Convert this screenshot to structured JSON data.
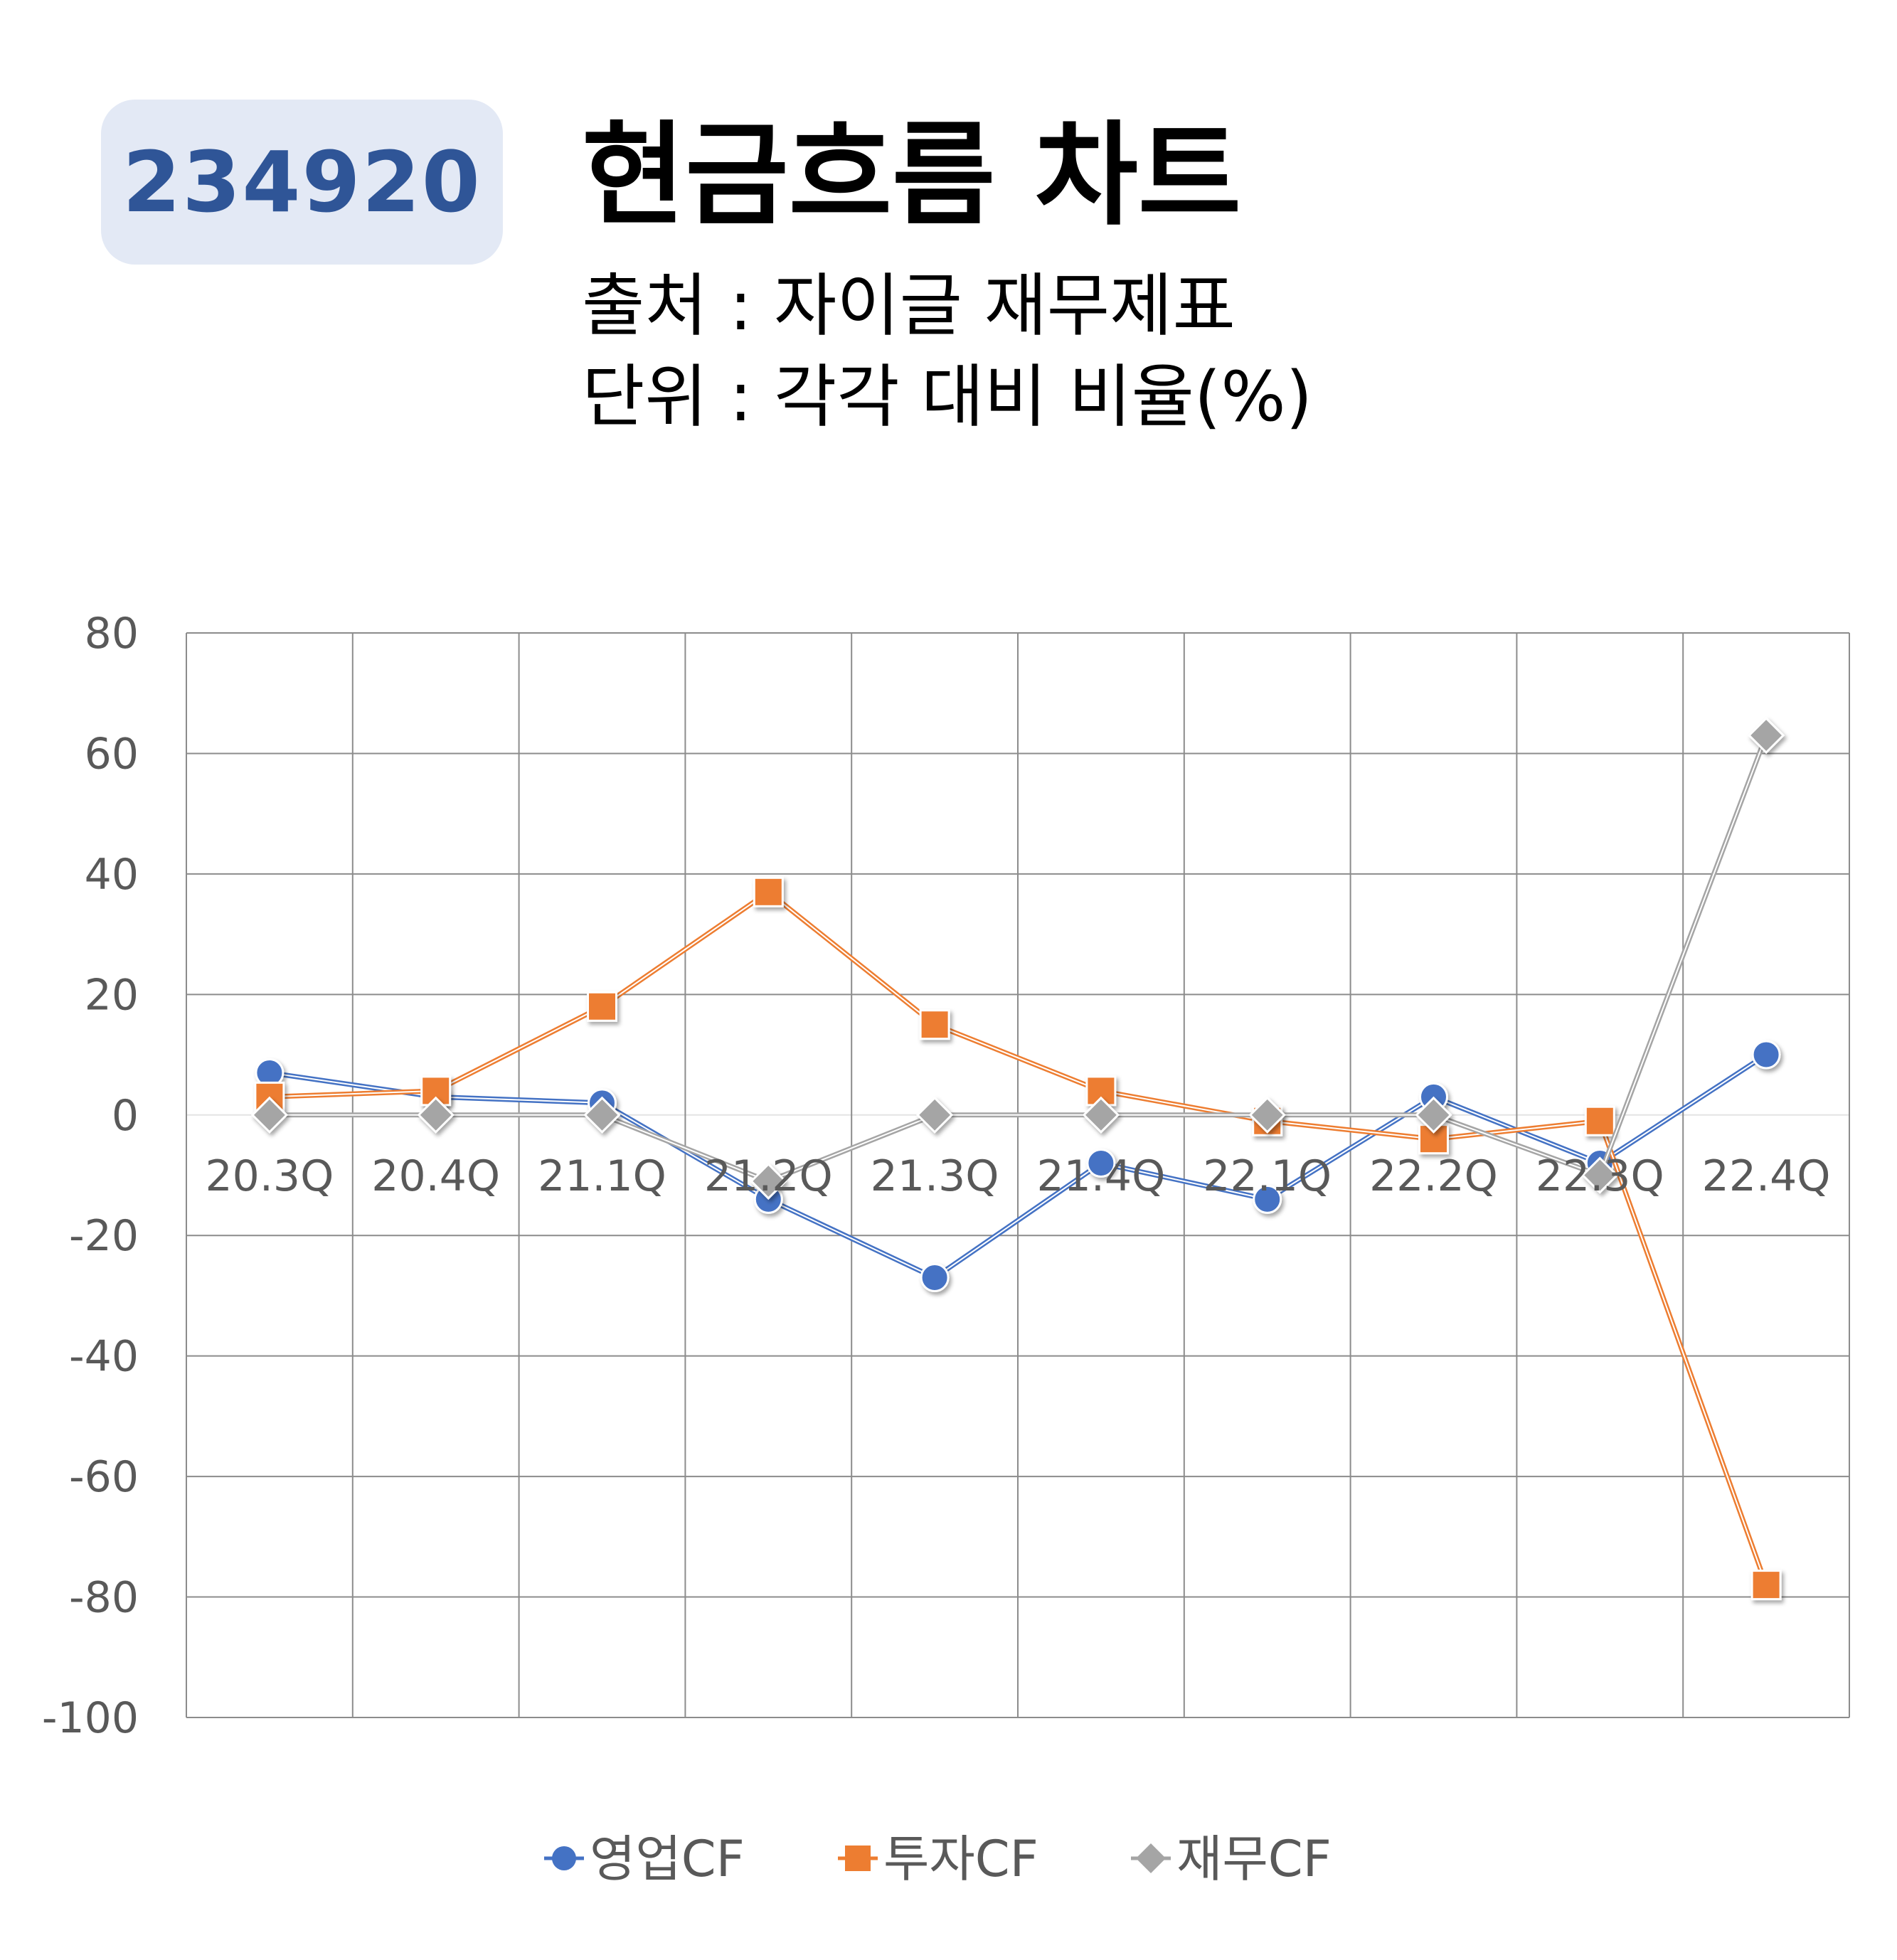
{
  "header": {
    "code": "234920",
    "title": "현금흐름 차트",
    "source": "출처 : 자이글 재무제표",
    "unit": "단위 : 각각 대비 비율(%)"
  },
  "chart_data": {
    "type": "line",
    "categories": [
      "20.3Q",
      "20.4Q",
      "21.1Q",
      "21.2Q",
      "21.3Q",
      "21.4Q",
      "22.1Q",
      "22.2Q",
      "22.3Q",
      "22.4Q"
    ],
    "ylim": [
      -100,
      80
    ],
    "yticks": [
      80,
      60,
      40,
      20,
      0,
      -20,
      -40,
      -60,
      -80,
      -100
    ],
    "grid": true,
    "legend_position": "bottom",
    "series": [
      {
        "name": "영업CF",
        "color": "#4472c4",
        "marker": "circle",
        "values": [
          7,
          3,
          2,
          -14,
          -27,
          -8,
          -14,
          3,
          -8,
          10
        ]
      },
      {
        "name": "투자CF",
        "color": "#ed7d31",
        "marker": "square",
        "values": [
          3,
          4,
          18,
          37,
          15,
          4,
          -1,
          -4,
          -1,
          -78
        ]
      },
      {
        "name": "재무CF",
        "color": "#a5a5a5",
        "marker": "diamond",
        "values": [
          0,
          0,
          0,
          -11,
          0,
          0,
          0,
          0,
          -10,
          63
        ]
      }
    ]
  }
}
